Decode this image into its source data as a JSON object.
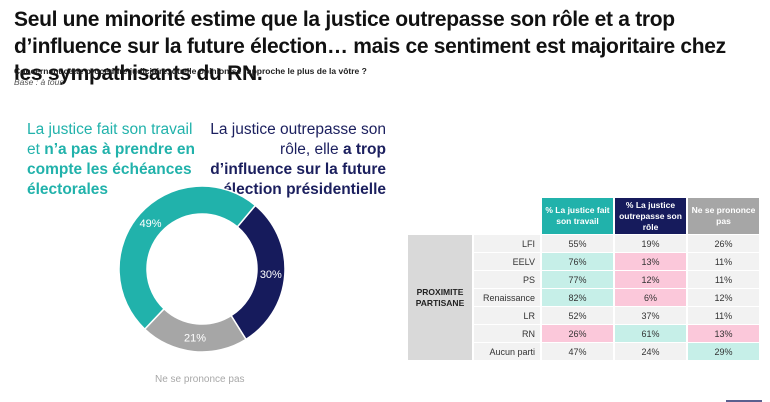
{
  "title": "Seul une minorité estime que la justice outrepasse son rôle et a trop d’influence sur la future élection… mais ce sentiment est majoritaire chez les sympathisants du RN.",
  "question": "Concernant cette procédure judiciaire, quelle opinion se rapproche le plus de la vôtre ?",
  "base": "Base : à tous",
  "labels": {
    "left_plain": "La justice fait son travail et ",
    "left_bold": "n’a pas à prendre en compte les échéances électorales",
    "right_plain": "La justice outrepasse son rôle, elle ",
    "right_bold": "a trop d’influence sur la future élection présidentielle",
    "bottom": "Ne se prononce pas"
  },
  "colors": {
    "teal": "#21b2ab",
    "navy": "#161b5c",
    "gray": "#a6a6a6",
    "highlight_green": "#c6efe8",
    "highlight_pink": "#fbc8da",
    "row_bg": "#f2f2f2"
  },
  "chart_data": [
    {
      "type": "pie",
      "variant": "donut",
      "title": "",
      "slices": [
        {
          "label": "La justice outrepasse son rôle",
          "value": 30,
          "display": "30%",
          "color": "#161b5c"
        },
        {
          "label": "Ne se prononce pas",
          "value": 21,
          "display": "21%",
          "color": "#a6a6a6"
        },
        {
          "label": "La justice fait son travail",
          "value": 49,
          "display": "49%",
          "color": "#21b2ab"
        }
      ]
    },
    {
      "type": "table",
      "group_label": "PROXIMITE PARTISANE",
      "columns": [
        {
          "label": "% La justice fait son travail",
          "color": "#21b2ab"
        },
        {
          "label": "% La justice outrepasse son rôle",
          "color": "#161b5c"
        },
        {
          "label": "Ne se prononce pas",
          "color": "#a6a6a6"
        }
      ],
      "rows": [
        {
          "party": "LFI",
          "values": [
            "55%",
            "19%",
            "26%"
          ],
          "highlight": [
            "",
            "",
            ""
          ]
        },
        {
          "party": "EELV",
          "values": [
            "76%",
            "13%",
            "11%"
          ],
          "highlight": [
            "green",
            "pink",
            ""
          ]
        },
        {
          "party": "PS",
          "values": [
            "77%",
            "12%",
            "11%"
          ],
          "highlight": [
            "green",
            "pink",
            ""
          ]
        },
        {
          "party": "Renaissance",
          "values": [
            "82%",
            "6%",
            "12%"
          ],
          "highlight": [
            "green",
            "pink",
            ""
          ]
        },
        {
          "party": "LR",
          "values": [
            "52%",
            "37%",
            "11%"
          ],
          "highlight": [
            "",
            "",
            ""
          ]
        },
        {
          "party": "RN",
          "values": [
            "26%",
            "61%",
            "13%"
          ],
          "highlight": [
            "pink",
            "green",
            "pink"
          ]
        },
        {
          "party": "Aucun parti",
          "values": [
            "47%",
            "24%",
            "29%"
          ],
          "highlight": [
            "",
            "",
            "green"
          ]
        }
      ]
    }
  ]
}
